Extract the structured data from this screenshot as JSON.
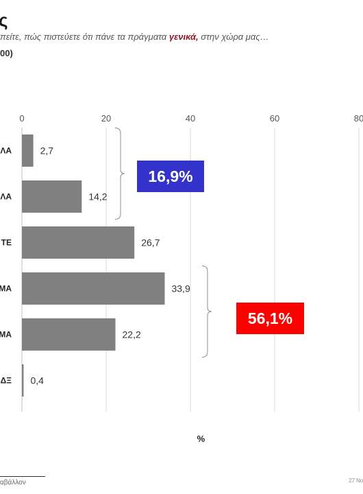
{
  "header": {
    "title_partial": "ς",
    "question_prefix": "πείτε, πώς πιστεύετε ότι πάνε τα πράγματα ",
    "question_highlight": "γενικά,",
    "question_suffix": " στην χώρα μας…",
    "base": "00)"
  },
  "chart_data": {
    "type": "bar",
    "orientation": "horizontal",
    "categories": [
      "ΛΑ",
      "ΛΑ",
      "ΤΕ",
      "ΜΑ",
      "ΜΑ",
      "ΔΞ"
    ],
    "values": [
      2.7,
      14.2,
      26.7,
      33.9,
      22.2,
      0.4
    ],
    "value_labels": [
      "2,7",
      "14,2",
      "26,7",
      "33,9",
      "22,2",
      "0,4"
    ],
    "x_ticks": [
      0,
      20,
      40,
      60,
      80
    ],
    "x_tick_labels": [
      "0",
      "20",
      "40",
      "60",
      "80"
    ],
    "xlim": [
      0,
      80
    ],
    "xlabel": "%",
    "grid": true,
    "bar_color": "#808080",
    "summaries": [
      {
        "text": "16,9%",
        "bg_color": "#3333cc",
        "categories": [
          0,
          1
        ]
      },
      {
        "text": "56,1%",
        "bg_color": "#ff0000",
        "categories": [
          3,
          4
        ]
      }
    ]
  },
  "footer": {
    "footnote": "αβάλλον",
    "date": "27 Νο"
  }
}
